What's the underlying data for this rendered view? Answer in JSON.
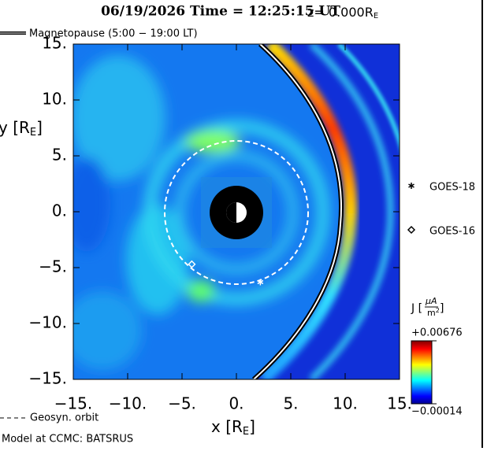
{
  "chart_data": {
    "type": "heatmap",
    "title": "06/19/2026 Time = 12:25:15 UT",
    "z_label": {
      "text": "z= 0.000R",
      "sub": "E"
    },
    "xlabel": {
      "text": "x [R",
      "sub": "E",
      "end": "]"
    },
    "ylabel": {
      "text": "y [R",
      "sub": "E",
      "end": "]"
    },
    "xlim": [
      -15,
      15
    ],
    "ylim": [
      -15,
      15
    ],
    "xticks": [
      {
        "value": -15,
        "label": "−15."
      },
      {
        "value": -10,
        "label": "−10."
      },
      {
        "value": -5,
        "label": "−5."
      },
      {
        "value": 0,
        "label": "0."
      },
      {
        "value": 5,
        "label": "5."
      },
      {
        "value": 10,
        "label": "10."
      },
      {
        "value": 15,
        "label": "15."
      }
    ],
    "yticks": [
      {
        "value": 15,
        "label": "15."
      },
      {
        "value": 10,
        "label": "10."
      },
      {
        "value": 5,
        "label": "5."
      },
      {
        "value": 0,
        "label": "0."
      },
      {
        "value": -5,
        "label": "−5."
      },
      {
        "value": -10,
        "label": "−10."
      },
      {
        "value": -15,
        "label": "−15."
      }
    ],
    "legend": {
      "magnetopause": "Magnetopause (5:00 − 19:00 LT)",
      "orbit": "Geosyn. orbit"
    },
    "markers": [
      {
        "name": "GOES-18",
        "symbol": "asterisk",
        "x": 2.2,
        "y": -6.3
      },
      {
        "name": "GOES-16",
        "symbol": "diamond",
        "x": -4.1,
        "y": -4.7
      }
    ],
    "colorbar": {
      "label": {
        "text": "J [",
        "num": "μA",
        "den": "m",
        "den_sup": "2",
        "end": "]"
      },
      "lim": [
        -0.00014,
        0.00676
      ],
      "ticks": [
        {
          "value": 0.00676,
          "label": "+0.00676"
        },
        {
          "value": -0.00014,
          "label": "−0.00014"
        }
      ]
    },
    "footer": "Model at CCMC: BATSRUS"
  }
}
